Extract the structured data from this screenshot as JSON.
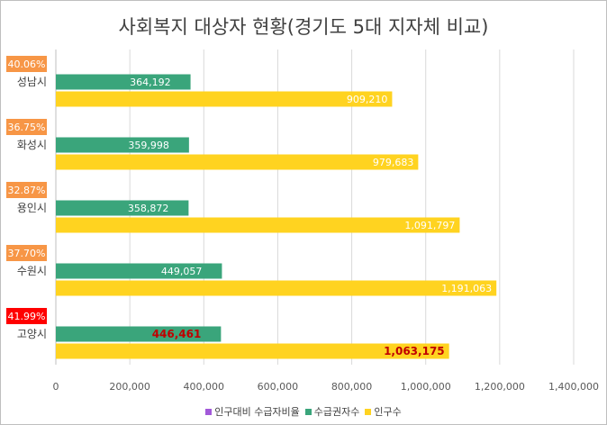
{
  "chart_data": {
    "type": "bar",
    "orientation": "horizontal",
    "title": "사회복지 대상자 현황(경기도 5대 지자체 비교)",
    "categories": [
      "성남시",
      "화성시",
      "용인시",
      "수원시",
      "고양시"
    ],
    "series": [
      {
        "name": "인구대비 수급자비율",
        "type": "ratio-badge",
        "color": "#A259D9",
        "labels": [
          "40.06%",
          "36.75%",
          "32.87%",
          "37.70%",
          "41.99%"
        ],
        "values": [
          40.06,
          36.75,
          32.87,
          37.7,
          41.99
        ],
        "badge_colors": [
          "#F79646",
          "#F79646",
          "#F79646",
          "#F79646",
          "#FF0000"
        ]
      },
      {
        "name": "수급권자수",
        "type": "bar",
        "color": "#3AA57B",
        "values": [
          364192,
          359998,
          358872,
          449057,
          446461
        ],
        "labels": [
          "364,192",
          "359,998",
          "358,872",
          "449,057",
          "446,461"
        ],
        "label_colors": [
          "#ffffff",
          "#ffffff",
          "#ffffff",
          "#ffffff",
          "#C00000"
        ]
      },
      {
        "name": "인구수",
        "type": "bar",
        "color": "#FFD320",
        "values": [
          909210,
          979683,
          1091797,
          1191063,
          1063175
        ],
        "labels": [
          "909,210",
          "979,683",
          "1,091,797",
          "1,191,063",
          "1,063,175"
        ],
        "label_colors": [
          "#ffffff",
          "#ffffff",
          "#ffffff",
          "#ffffff",
          "#C00000"
        ]
      }
    ],
    "xlim": [
      0,
      1400000
    ],
    "xticks": [
      0,
      200000,
      400000,
      600000,
      800000,
      1000000,
      1200000,
      1400000
    ],
    "xtick_labels": [
      "0",
      "200,000",
      "400,000",
      "600,000",
      "800,000",
      "1,000,000",
      "1,200,000",
      "1,400,000"
    ],
    "grid": true,
    "legend_position": "bottom"
  }
}
